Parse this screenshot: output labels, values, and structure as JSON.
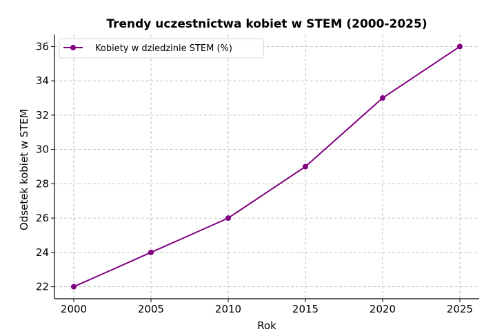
{
  "chart_data": {
    "type": "line",
    "title": "Trendy uczestnictwa kobiet w STEM (2000-2025)",
    "xlabel": "Rok",
    "ylabel": "Odsetek kobiet w STEM",
    "x": [
      2000,
      2005,
      2010,
      2015,
      2020,
      2025
    ],
    "series": [
      {
        "name": "Kobiety w dziedzinie STEM (%)",
        "values": [
          22,
          24,
          26,
          29,
          33,
          36
        ],
        "color": "#800080",
        "marker": "circle"
      }
    ],
    "xticks": [
      "2000",
      "2005",
      "2010",
      "2015",
      "2020",
      "2025"
    ],
    "yticks": [
      "22",
      "24",
      "26",
      "28",
      "30",
      "32",
      "34",
      "36"
    ],
    "xlim": [
      1998.75,
      2026.25
    ],
    "ylim": [
      21.3,
      36.7
    ],
    "grid": true,
    "legend_position": "top-left"
  }
}
